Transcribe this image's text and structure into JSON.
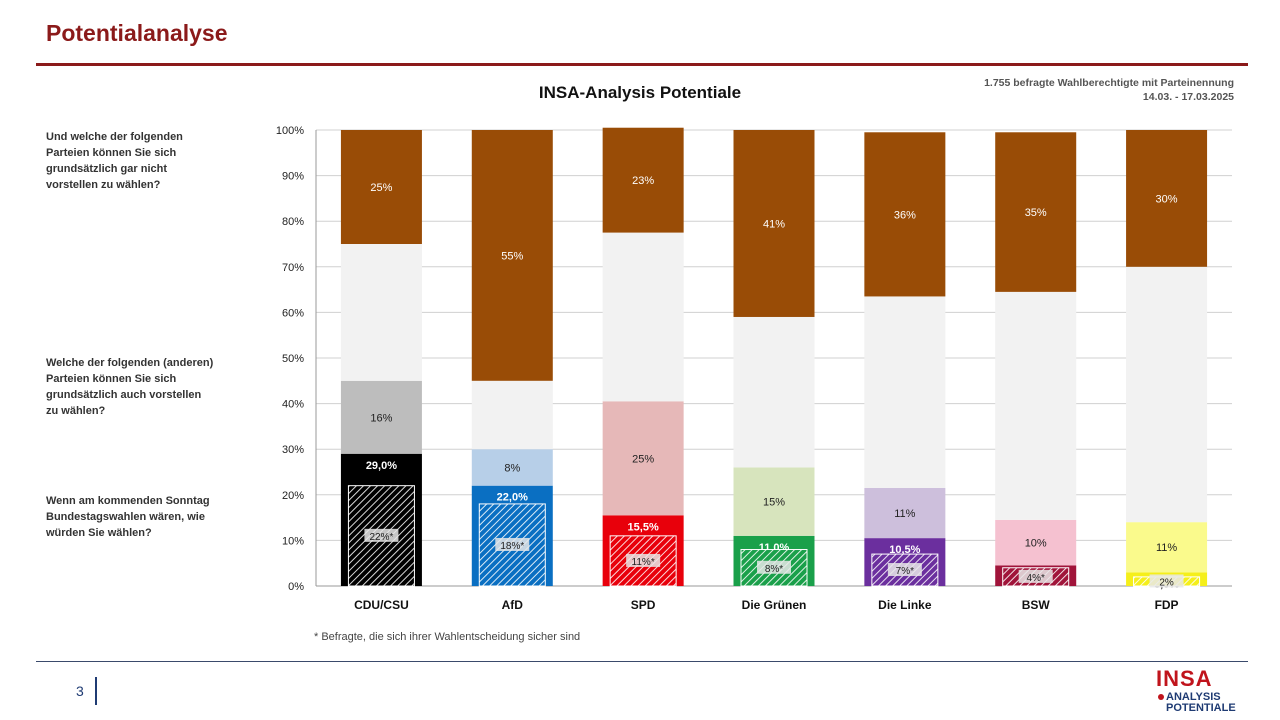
{
  "slide": {
    "title": "Potentialanalyse",
    "sample_note": "1.755 befragte Wahlberechtigte mit Parteinennung",
    "date_range": "14.03. - 17.03.2025",
    "question_rejection": "Und welche der folgenden Parteien können Sie sich grundsätzlich gar nicht vorstellen zu wählen?",
    "question_potential": "Welche der folgenden (anderen) Parteien können Sie sich grundsätzlich auch vorstellen zu wählen?",
    "question_vote": "Wenn am kommenden Sonntag Bundestagswahlen wären, wie würden Sie wählen?",
    "footnote": "* Befragte, die sich ihrer Wahlentscheidung sicher sind",
    "page_number": "3",
    "logo_line1": "INSA",
    "logo_line2": "ANALYSIS",
    "logo_line3": "POTENTIALE"
  },
  "chart_data": {
    "type": "bar",
    "stacked": true,
    "title": "INSA-Analysis Potentiale",
    "ylim": [
      0,
      100
    ],
    "yticks": [
      "0%",
      "10%",
      "20%",
      "30%",
      "40%",
      "50%",
      "60%",
      "70%",
      "80%",
      "90%",
      "100%"
    ],
    "grid": true,
    "categories": [
      "CDU/CSU",
      "AfD",
      "SPD",
      "Die Grünen",
      "Die Linke",
      "BSW",
      "FDP"
    ],
    "series": [
      {
        "values": [
          29.0,
          22.0,
          15.5,
          11.0,
          10.5,
          4.5,
          3.0
        ],
        "labels": [
          "29,0%",
          "22,0%",
          "15,5%",
          "11,0%",
          "10,5%",
          "4,5%",
          "3,0%"
        ]
      },
      {
        "values": [
          16,
          8,
          25,
          15,
          11,
          10,
          11
        ],
        "labels": [
          "16%",
          "8%",
          "25%",
          "15%",
          "11%",
          "10%",
          "11%"
        ]
      },
      {
        "values": [
          30,
          15,
          37,
          33,
          42,
          50,
          56
        ]
      },
      {
        "values": [
          25,
          55,
          23,
          41,
          36,
          35,
          30
        ],
        "labels": [
          "25%",
          "55%",
          "23%",
          "41%",
          "36%",
          "35%",
          "30%"
        ]
      }
    ],
    "sure_voters": {
      "values": [
        22,
        18,
        11,
        8,
        7,
        4,
        2
      ],
      "labels": [
        "22%*",
        "18%*",
        "11%*",
        "8%*",
        "7%*",
        "4%*",
        "2%"
      ]
    },
    "colors": {
      "vote": [
        "#000000",
        "#0a6fc2",
        "#e8000b",
        "#1aa04a",
        "#6b2f9e",
        "#a0143a",
        "#f5ef1a"
      ],
      "potential": [
        "#bdbdbd",
        "#b7cfe8",
        "#e6b8b8",
        "#d7e4bd",
        "#cdbfdc",
        "#f5c1d0",
        "#fafa8c"
      ],
      "undecided": "#f2f2f2",
      "rejection": "#994c06"
    }
  }
}
